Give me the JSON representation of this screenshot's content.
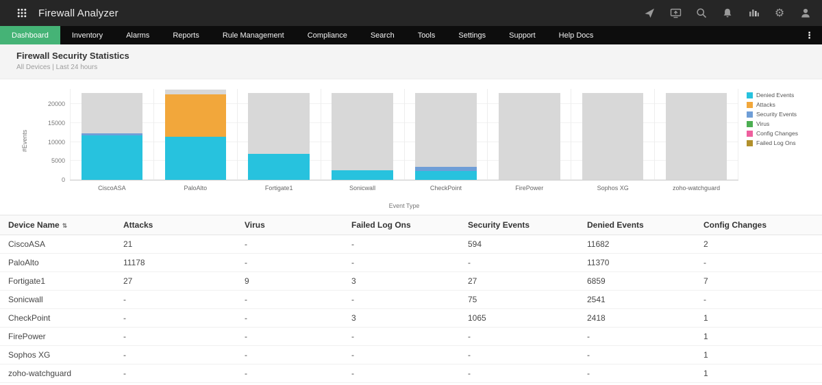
{
  "topbar": {
    "title": "Firewall Analyzer",
    "icons": [
      "app-grid",
      "send",
      "screen-share",
      "search",
      "notifications",
      "audio-levels",
      "settings",
      "user"
    ]
  },
  "nav": {
    "items": [
      {
        "label": "Dashboard",
        "active": true
      },
      {
        "label": "Inventory",
        "active": false
      },
      {
        "label": "Alarms",
        "active": false
      },
      {
        "label": "Reports",
        "active": false
      },
      {
        "label": "Rule Management",
        "active": false
      },
      {
        "label": "Compliance",
        "active": false
      },
      {
        "label": "Search",
        "active": false
      },
      {
        "label": "Tools",
        "active": false
      },
      {
        "label": "Settings",
        "active": false
      },
      {
        "label": "Support",
        "active": false
      },
      {
        "label": "Help Docs",
        "active": false
      }
    ],
    "more_icon": "⋮"
  },
  "page": {
    "title": "Firewall Security Statistics",
    "subtitle": "All Devices | Last 24 hours"
  },
  "chart_data": {
    "type": "bar",
    "stacked": true,
    "title": "",
    "xlabel": "Event Type",
    "ylabel": "#Events",
    "ylim": [
      0,
      24000
    ],
    "yticks": [
      0,
      5000,
      10000,
      15000,
      20000
    ],
    "grid": true,
    "legend_position": "right",
    "categories": [
      "CiscoASA",
      "PaloAlto",
      "Fortigate1",
      "Sonicwall",
      "CheckPoint",
      "FirePower",
      "Sophos XG",
      "zoho-watchguard"
    ],
    "series": [
      {
        "name": "Denied Events",
        "color": "#27c2de",
        "values": [
          11682,
          11370,
          6859,
          2541,
          2418,
          0,
          0,
          0
        ]
      },
      {
        "name": "Attacks",
        "color": "#f2a73b",
        "values": [
          21,
          11178,
          27,
          0,
          0,
          0,
          0,
          0
        ]
      },
      {
        "name": "Security Events",
        "color": "#6f9ed7",
        "values": [
          594,
          0,
          27,
          75,
          1065,
          0,
          0,
          0
        ]
      },
      {
        "name": "Virus",
        "color": "#4cae52",
        "values": [
          0,
          0,
          9,
          0,
          0,
          0,
          0,
          0
        ]
      },
      {
        "name": "Config Changes",
        "color": "#ee5f9e",
        "values": [
          2,
          0,
          7,
          0,
          1,
          1,
          1,
          1
        ]
      },
      {
        "name": "Failed Log Ons",
        "color": "#b2902c",
        "values": [
          0,
          0,
          3,
          0,
          3,
          0,
          0,
          0
        ]
      }
    ],
    "bar_totals": [
      23000,
      23800,
      23000,
      23000,
      23000,
      23000,
      23000,
      23000
    ],
    "remainder_fill_color": "#d8d8d8"
  },
  "table": {
    "columns": [
      "Device Name",
      "Attacks",
      "Virus",
      "Failed Log Ons",
      "Security Events",
      "Denied Events",
      "Config Changes"
    ],
    "sort_icon": "⇅",
    "rows": [
      [
        "CiscoASA",
        "21",
        "-",
        "-",
        "594",
        "11682",
        "2"
      ],
      [
        "PaloAlto",
        "11178",
        "-",
        "-",
        "-",
        "11370",
        "-"
      ],
      [
        "Fortigate1",
        "27",
        "9",
        "3",
        "27",
        "6859",
        "7"
      ],
      [
        "Sonicwall",
        "-",
        "-",
        "-",
        "75",
        "2541",
        "-"
      ],
      [
        "CheckPoint",
        "-",
        "-",
        "3",
        "1065",
        "2418",
        "1"
      ],
      [
        "FirePower",
        "-",
        "-",
        "-",
        "-",
        "-",
        "1"
      ],
      [
        "Sophos XG",
        "-",
        "-",
        "-",
        "-",
        "-",
        "1"
      ],
      [
        "zoho-watchguard",
        "-",
        "-",
        "-",
        "-",
        "-",
        "1"
      ]
    ]
  }
}
